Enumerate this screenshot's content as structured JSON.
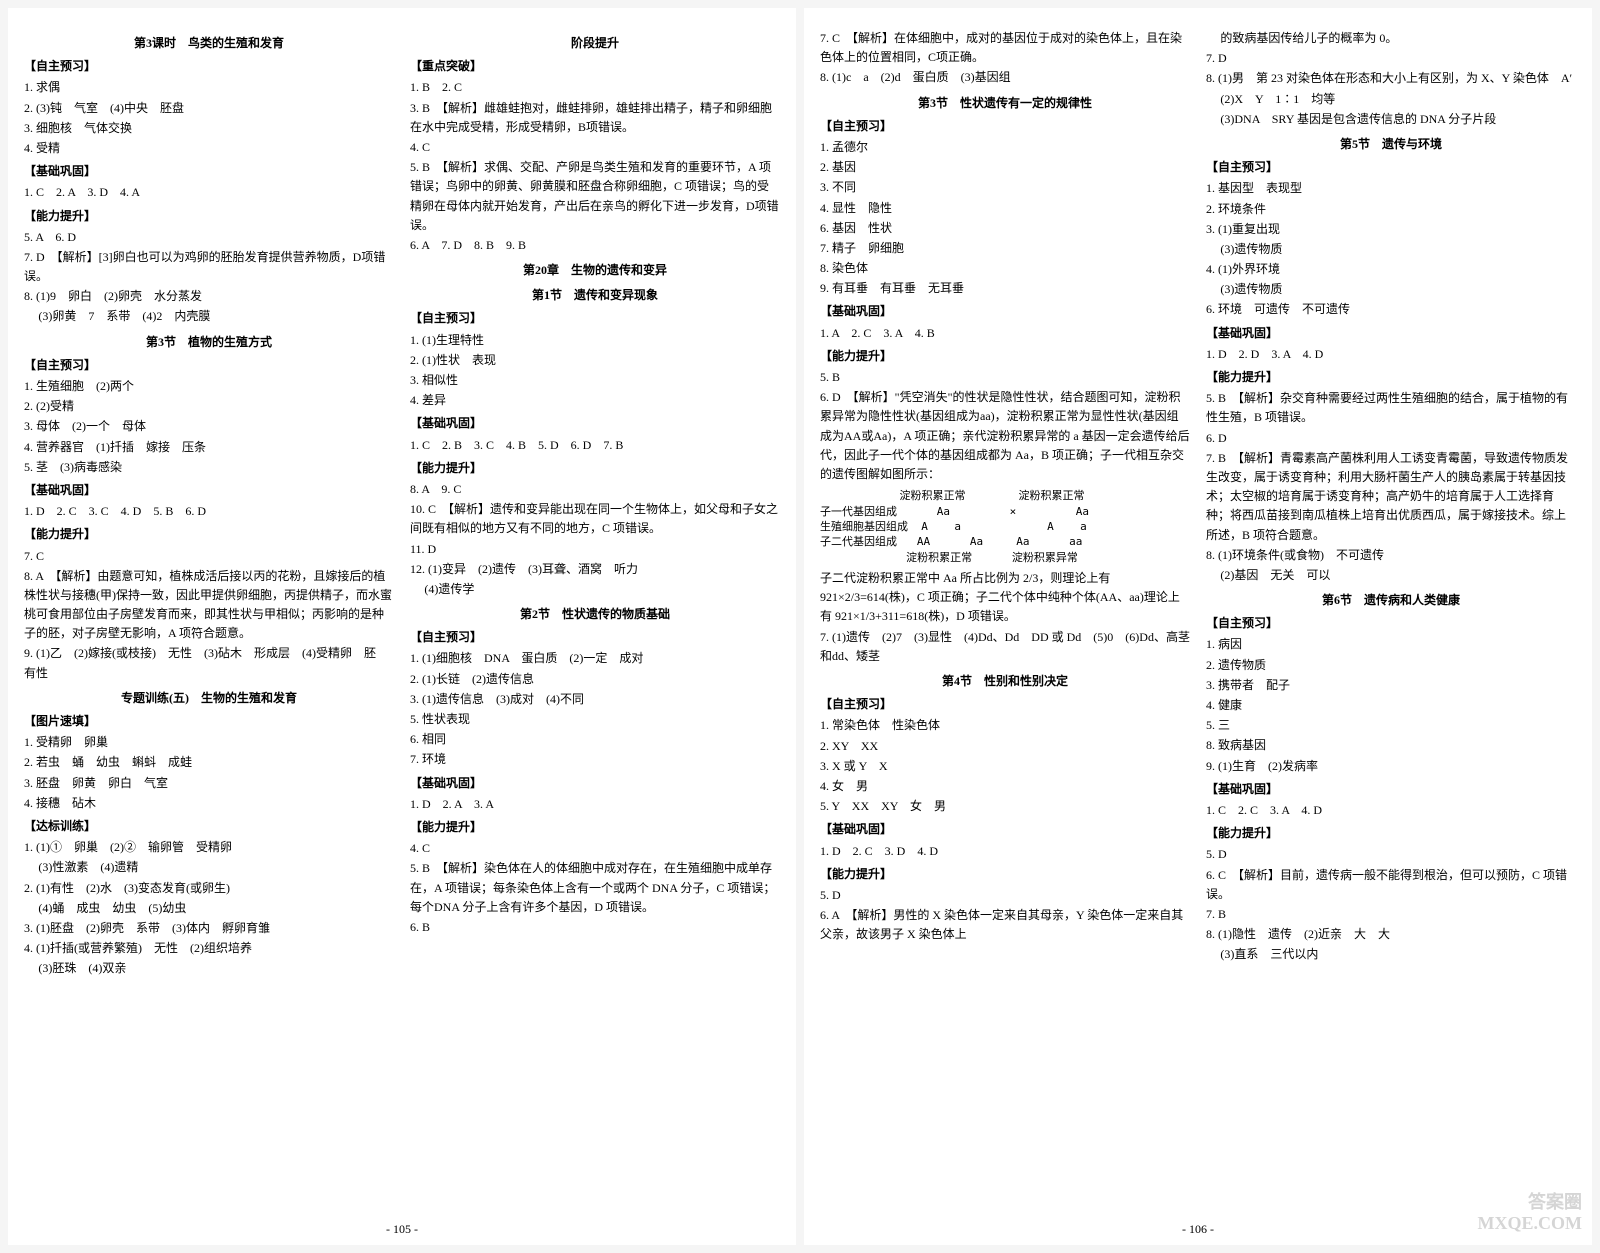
{
  "page_left": {
    "pagenum": "- 105 -",
    "col1": {
      "s1_title": "第3课时　鸟类的生殖和发育",
      "h_zzyx1": "【自主预习】",
      "l1": "1. 求偶",
      "l2": "2. (3)钝　气室　(4)中央　胚盘",
      "l3": "3. 细胞核　气体交换",
      "l4": "4. 受精",
      "h_jcwg1": "【基础巩固】",
      "l5": "1. C　2. A　3. D　4. A",
      "h_nlts1": "【能力提升】",
      "l6": "5. A　6. D",
      "l7": "7. D　【解析】[3]卵白也可以为鸡卵的胚胎发育提供营养物质，D项错误。",
      "l8": "8. (1)9　卵白　(2)卵壳　水分蒸发",
      "l8b": "(3)卵黄　7　系带　(4)2　内壳膜",
      "s2_title": "第3节　植物的生殖方式",
      "h_zzyx2": "【自主预习】",
      "l9": "1. 生殖细胞　(2)两个",
      "l10": "2. (2)受精",
      "l11": "3. 母体　(2)一个　母体",
      "l12": "4. 营养器官　(1)扦插　嫁接　压条",
      "l13": "5. 茎　(3)病毒感染",
      "h_jcwg2": "【基础巩固】",
      "l14": "1. D　2. C　3. C　4. D　5. B　6. D",
      "h_nlts2": "【能力提升】",
      "l15": "7. C",
      "l16": "8. A　【解析】由题意可知，植株成活后接以丙的花粉，且嫁接后的植株性状与接穗(甲)保持一致，因此甲提供卵细胞，丙提供精子，而水蜜桃可食用部位由子房壁发育而来，即其性状与甲相似；丙影响的是种子的胚，对子房壁无影响，A 项符合题意。",
      "l17": "9. (1)乙　(2)嫁接(或枝接)　无性　(3)砧木　形成层　(4)受精卵　胚　有性",
      "s3_title": "专题训练(五)　生物的生殖和发育",
      "h_tpst": "【图片速填】",
      "l18": "1. 受精卵　卵巢",
      "l19": "2. 若虫　蛹　幼虫　蝌蚪　成蛙",
      "l20": "3. 胚盘　卵黄　卵白　气室",
      "l21": "4. 接穗　砧木",
      "h_dbxl": "【达标训练】",
      "l22": "1. (1)①　卵巢　(2)②　输卵管　受精卵",
      "l22b": "(3)性激素　(4)遗精",
      "l23": "2. (1)有性　(2)水　(3)变态发育(或卵生)",
      "l23b": "(4)蛹　成虫　幼虫　(5)幼虫",
      "l24": "3. (1)胚盘　(2)卵壳　系带　(3)体内　孵卵育雏",
      "l25": "4. (1)扦插(或营养繁殖)　无性　(2)组织培养",
      "l25b": "(3)胚珠　(4)双亲"
    },
    "col2": {
      "s1_title": "阶段提升",
      "h_zdtp": "【重点突破】",
      "l1": "1. B　2. C",
      "l2": "3. B　【解析】雌雄蛙抱对，雌蛙排卵，雄蛙排出精子，精子和卵细胞在水中完成受精，形成受精卵，B项错误。",
      "l3": "4. C",
      "l4": "5. B　【解析】求偶、交配、产卵是鸟类生殖和发育的重要环节，A 项错误；鸟卵中的卵黄、卵黄膜和胚盘合称卵细胞，C 项错误；鸟的受精卵在母体内就开始发育，产出后在亲鸟的孵化下进一步发育，D项错误。",
      "l5": "6. A　7. D　8. B　9. B",
      "s2_title": "第20章　生物的遗传和变异",
      "s2_sub": "第1节　遗传和变异现象",
      "h_zzyx": "【自主预习】",
      "l6": "1. (1)生理特性",
      "l7": "2. (1)性状　表现",
      "l8": "3. 相似性",
      "l9": "4. 差异",
      "h_jcwg": "【基础巩固】",
      "l10": "1. C　2. B　3. C　4. B　5. D　6. D　7. B",
      "h_nlts": "【能力提升】",
      "l11": "8. A　9. C",
      "l12": "10. C　【解析】遗传和变异能出现在同一个生物体上，如父母和子女之间既有相似的地方又有不同的地方，C 项错误。",
      "l13": "11. D",
      "l14": "12. (1)变异　(2)遗传　(3)耳聋、酒窝　听力",
      "l14b": "(4)遗传学",
      "s3_title": "第2节　性状遗传的物质基础",
      "h_zzyx2": "【自主预习】",
      "l15": "1. (1)细胞核　DNA　蛋白质　(2)一定　成对",
      "l16": "2. (1)长链　(2)遗传信息",
      "l17": "3. (1)遗传信息　(3)成对　(4)不同",
      "l18": "5. 性状表现",
      "l19": "6. 相同",
      "l20": "7. 环境",
      "h_jcwg2": "【基础巩固】",
      "l21": "1. D　2. A　3. A",
      "h_nlts2": "【能力提升】",
      "l22": "4. C",
      "l23": "5. B　【解析】染色体在人的体细胞中成对存在，在生殖细胞中成单存在，A 项错误；每条染色体上含有一个或两个 DNA 分子，C 项错误；每个DNA 分子上含有许多个基因，D 项错误。",
      "l24": "6. B"
    }
  },
  "page_right": {
    "pagenum": "- 106 -",
    "watermark1": "答案圈",
    "watermark2": "MXQE.COM",
    "col1": {
      "l1": "7. C　【解析】在体细胞中，成对的基因位于成对的染色体上，且在染色体上的位置相同，C项正确。",
      "l2": "8. (1)c　a　(2)d　蛋白质　(3)基因组",
      "s1_title": "第3节　性状遗传有一定的规律性",
      "h_zzyx": "【自主预习】",
      "l3": "1. 孟德尔",
      "l4": "2. 基因",
      "l5": "3. 不同",
      "l6": "4. 显性　隐性",
      "l7": "6. 基因　性状",
      "l8": "7. 精子　卵细胞",
      "l9": "8. 染色体",
      "l10": "9. 有耳垂　有耳垂　无耳垂",
      "h_jcwg": "【基础巩固】",
      "l11": "1. A　2. C　3. A　4. B",
      "h_nlts": "【能力提升】",
      "l12": "5. B",
      "l13": "6. D　【解析】\"凭空消失\"的性状是隐性性状，结合题图可知，淀粉积累异常为隐性性状(基因组成为aa)，淀粉积累正常为显性性状(基因组成为AA或Aa)，A 项正确；亲代淀粉积累异常的 a 基因一定会遗传给后代，因此子一代个体的基因组成都为 Aa，B 项正确；子一代相互杂交的遗传图解如图所示：",
      "diagram": {
        "r1": "            淀粉积累正常        淀粉积累正常",
        "r2": "子一代基因组成      Aa         ×         Aa",
        "r3": "生殖细胞基因组成  A    a             A    a",
        "r4": "子二代基因组成   AA      Aa     Aa      aa",
        "r5": "             淀粉积累正常      淀粉积累异常"
      },
      "l14": "子二代淀粉积累正常中 Aa 所占比例为 2/3，则理论上有 921×2/3=614(株)，C 项正确；子二代个体中纯种个体(AA、aa)理论上有 921×1/3+311=618(株)，D 项错误。",
      "l15": "7. (1)遗传　(2)7　(3)显性　(4)Dd、Dd　DD 或 Dd　(5)0　(6)Dd、高茎和dd、矮茎",
      "s2_title": "第4节　性别和性别决定",
      "h_zzyx2": "【自主预习】",
      "l16": "1. 常染色体　性染色体",
      "l17": "2. XY　XX",
      "l18": "3. X 或 Y　X",
      "l19": "4. 女　男",
      "l20": "5. Y　XX　XY　女　男",
      "h_jcwg2": "【基础巩固】",
      "l21": "1. D　2. C　3. D　4. D",
      "h_nlts2": "【能力提升】",
      "l22": "5. D",
      "l23": "6. A　【解析】男性的 X 染色体一定来自其母亲，Y 染色体一定来自其父亲，故该男子 X 染色体上"
    },
    "col2": {
      "l1": "的致病基因传给儿子的概率为 0。",
      "l2": "7. D",
      "l3": "8. (1)男　第 23 对染色体在形态和大小上有区别，为 X、Y 染色体　A′",
      "l3b": "(2)X　Y　1∶1　均等",
      "l3c": "(3)DNA　SRY 基因是包含遗传信息的 DNA 分子片段",
      "s1_title": "第5节　遗传与环境",
      "h_zzyx": "【自主预习】",
      "l4": "1. 基因型　表现型",
      "l5": "2. 环境条件",
      "l6": "3. (1)重复出现",
      "l6b": "(3)遗传物质",
      "l7": "4. (1)外界环境",
      "l7b": "(3)遗传物质",
      "l8": "6. 环境　可遗传　不可遗传",
      "h_jcwg": "【基础巩固】",
      "l9": "1. D　2. D　3. A　4. D",
      "h_nlts": "【能力提升】",
      "l10": "5. B　【解析】杂交育种需要经过两性生殖细胞的结合，属于植物的有性生殖，B 项错误。",
      "l11": "6. D",
      "l12": "7. B　【解析】青霉素高产菌株利用人工诱变青霉菌，导致遗传物质发生改变，属于诱变育种；利用大肠杆菌生产人的胰岛素属于转基因技术；太空椒的培育属于诱变育种；高产奶牛的培育属于人工选择育种；将西瓜苗接到南瓜植株上培育出优质西瓜，属于嫁接技术。综上所述，B 项符合题意。",
      "l13": "8. (1)环境条件(或食物)　不可遗传",
      "l13b": "(2)基因　无关　可以",
      "s2_title": "第6节　遗传病和人类健康",
      "h_zzyx2": "【自主预习】",
      "l14": "1. 病因",
      "l15": "2. 遗传物质",
      "l16": "3. 携带者　配子",
      "l17": "4. 健康",
      "l18": "5. 三",
      "l19": "8. 致病基因",
      "l20": "9. (1)生育　(2)发病率",
      "h_jcwg2": "【基础巩固】",
      "l21": "1. C　2. C　3. A　4. D",
      "h_nlts2": "【能力提升】",
      "l22": "5. D",
      "l23": "6. C　【解析】目前，遗传病一般不能得到根治，但可以预防，C 项错误。",
      "l24": "7. B",
      "l25": "8. (1)隐性　遗传　(2)近亲　大　大",
      "l25b": "(3)直系　三代以内"
    }
  }
}
